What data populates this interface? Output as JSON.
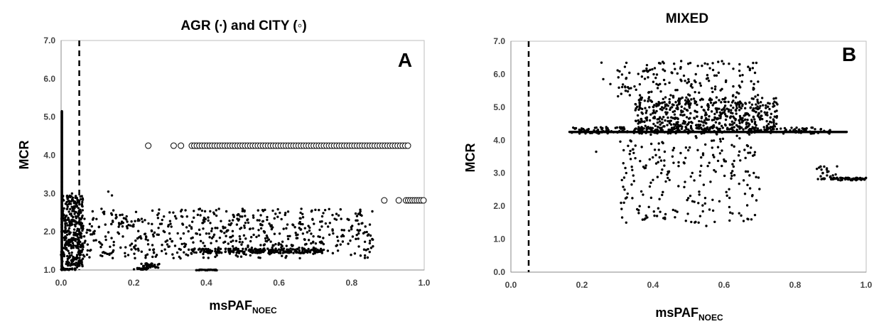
{
  "chart_data": [
    {
      "type": "scatter",
      "title": "AGR (∙) and CITY (◦)",
      "panel_label": "A",
      "xlabel_main": "msPAF",
      "xlabel_sub": "NOEC",
      "ylabel": "MCR",
      "xlim": [
        0.0,
        1.0
      ],
      "ylim": [
        1.0,
        7.0
      ],
      "x_ticks": [
        "0.0",
        "0.2",
        "0.4",
        "0.6",
        "0.8",
        "1.0"
      ],
      "y_ticks": [
        "1.0",
        "2.0",
        "3.0",
        "4.0",
        "5.0",
        "6.0",
        "7.0"
      ],
      "threshold_x": 0.05,
      "grid": false,
      "series": [
        {
          "marker": "filled-dot",
          "clusters": [
            {
              "kind": "line",
              "x": 0.002,
              "y0": 1.0,
              "y1": 5.15
            },
            {
              "kind": "cloud",
              "x0": 0.0,
              "x1": 0.06,
              "y0": 1.05,
              "y1": 2.95,
              "n": 360,
              "seed": 11
            },
            {
              "kind": "cloud",
              "x0": 0.06,
              "x1": 0.86,
              "y0": 1.3,
              "y1": 2.6,
              "n": 620,
              "seed": 21
            },
            {
              "kind": "band",
              "x0": 0.35,
              "x1": 0.72,
              "y": 1.5,
              "jitter": 0.06,
              "n": 220,
              "seed": 31
            },
            {
              "kind": "band",
              "x0": 0.2,
              "x1": 0.24,
              "y": 1.03,
              "jitter": 0.02,
              "n": 25,
              "seed": 41
            },
            {
              "kind": "band",
              "x0": 0.22,
              "x1": 0.27,
              "y": 1.12,
              "jitter": 0.06,
              "n": 35,
              "seed": 51
            },
            {
              "kind": "band",
              "x0": 0.37,
              "x1": 0.43,
              "y": 1.0,
              "jitter": 0.01,
              "n": 30,
              "seed": 61
            },
            {
              "kind": "band",
              "x0": 0.0,
              "x1": 0.04,
              "y": 1.02,
              "jitter": 0.02,
              "n": 25,
              "seed": 71
            },
            {
              "kind": "points",
              "xy": [
                [
                  0.13,
                  3.05
                ],
                [
                  0.14,
                  2.95
                ],
                [
                  0.82,
                  2.02
                ],
                [
                  0.84,
                  1.52
                ],
                [
                  0.85,
                  1.7
                ],
                [
                  0.02,
                  2.8
                ],
                [
                  0.03,
                  3.0
                ]
              ]
            }
          ]
        },
        {
          "marker": "open-circle",
          "clusters": [
            {
              "kind": "points",
              "xy": [
                [
                  0.24,
                  4.25
                ],
                [
                  0.31,
                  4.25
                ],
                [
                  0.33,
                  4.25
                ],
                [
                  0.89,
                  2.82
                ],
                [
                  0.93,
                  2.82
                ]
              ]
            },
            {
              "kind": "row",
              "x0": 0.36,
              "x1": 0.955,
              "y": 4.25,
              "step": 0.007
            },
            {
              "kind": "row",
              "x0": 0.95,
              "x1": 1.0,
              "y": 2.82,
              "step": 0.006
            }
          ]
        }
      ]
    },
    {
      "type": "scatter",
      "title": "MIXED",
      "panel_label": "B",
      "xlabel_main": "msPAF",
      "xlabel_sub": "NOEC",
      "ylabel": "MCR",
      "xlim": [
        0.0,
        1.0
      ],
      "ylim": [
        0.0,
        7.0
      ],
      "x_ticks": [
        "0.0",
        "0.2",
        "0.4",
        "0.6",
        "0.8",
        "1.0"
      ],
      "y_ticks": [
        "0.0",
        "1.0",
        "2.0",
        "3.0",
        "4.0",
        "5.0",
        "6.0",
        "7.0"
      ],
      "threshold_x": 0.05,
      "grid": false,
      "series": [
        {
          "marker": "filled-dot",
          "clusters": [
            {
              "kind": "line",
              "x0": 0.165,
              "x1": 0.945,
              "y": 4.25
            },
            {
              "kind": "band",
              "x0": 0.165,
              "x1": 0.9,
              "y": 4.3,
              "jitter": 0.1,
              "n": 260,
              "seed": 101
            },
            {
              "kind": "cloud",
              "x0": 0.35,
              "x1": 0.75,
              "y0": 4.3,
              "y1": 5.3,
              "n": 520,
              "seed": 111
            },
            {
              "kind": "cloud",
              "x0": 0.3,
              "x1": 0.7,
              "y0": 5.3,
              "y1": 6.4,
              "n": 150,
              "seed": 121
            },
            {
              "kind": "cloud",
              "x0": 0.3,
              "x1": 0.7,
              "y0": 1.5,
              "y1": 4.2,
              "n": 230,
              "seed": 131
            },
            {
              "kind": "cloud",
              "x0": 0.86,
              "x1": 0.92,
              "y0": 2.8,
              "y1": 3.25,
              "n": 25,
              "seed": 141
            },
            {
              "kind": "band",
              "x0": 0.9,
              "x1": 1.0,
              "y": 2.82,
              "jitter": 0.04,
              "n": 70,
              "seed": 151
            },
            {
              "kind": "points",
              "xy": [
                [
                  0.255,
                  6.35
                ],
                [
                  0.26,
                  5.85
                ],
                [
                  0.28,
                  5.7
                ],
                [
                  0.24,
                  3.65
                ],
                [
                  0.31,
                  2.1
                ],
                [
                  0.32,
                  2.5
                ],
                [
                  0.55,
                  1.4
                ],
                [
                  0.655,
                  1.55
                ]
              ]
            }
          ]
        }
      ]
    }
  ]
}
